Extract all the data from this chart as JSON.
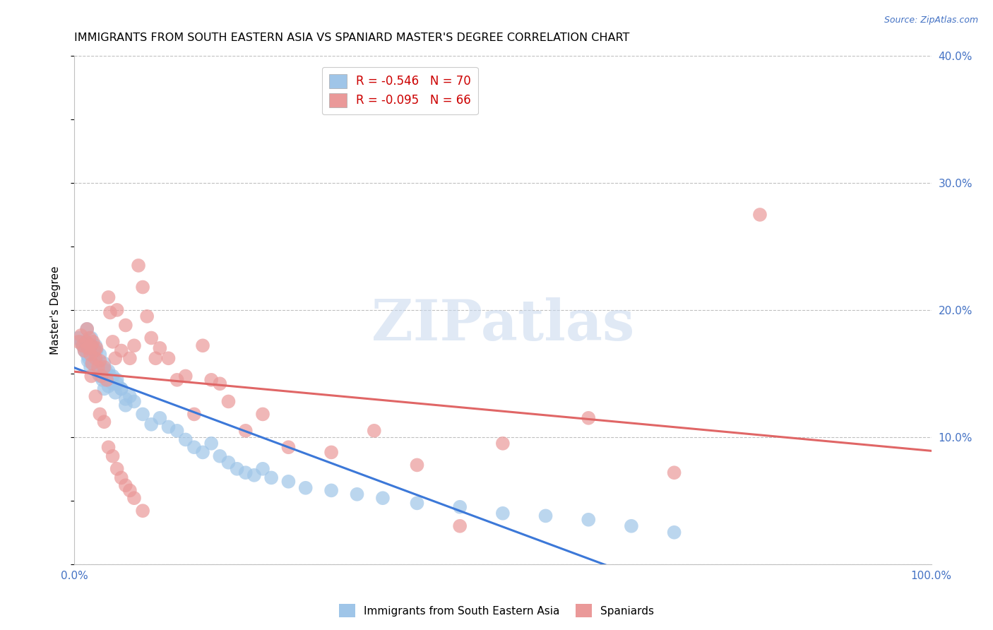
{
  "title": "IMMIGRANTS FROM SOUTH EASTERN ASIA VS SPANIARD MASTER'S DEGREE CORRELATION CHART",
  "source": "Source: ZipAtlas.com",
  "ylabel": "Master's Degree",
  "xlim": [
    0,
    1.0
  ],
  "ylim": [
    0,
    0.4
  ],
  "yticks": [
    0.0,
    0.1,
    0.2,
    0.3,
    0.4
  ],
  "yticklabels": [
    "",
    "10.0%",
    "20.0%",
    "30.0%",
    "40.0%"
  ],
  "legend_labels": [
    "Immigrants from South Eastern Asia",
    "Spaniards"
  ],
  "blue_color": "#9fc5e8",
  "pink_color": "#ea9999",
  "blue_line_color": "#3c78d8",
  "pink_line_color": "#e06666",
  "R_blue": -0.546,
  "N_blue": 70,
  "R_pink": -0.095,
  "N_pink": 66,
  "watermark": "ZIPatlas",
  "tick_color": "#4472c4",
  "grid_color": "#c0c0c0",
  "blue_scatter_x": [
    0.005,
    0.008,
    0.01,
    0.012,
    0.013,
    0.014,
    0.015,
    0.016,
    0.017,
    0.018,
    0.019,
    0.02,
    0.021,
    0.022,
    0.023,
    0.025,
    0.026,
    0.028,
    0.03,
    0.032,
    0.033,
    0.035,
    0.037,
    0.04,
    0.042,
    0.045,
    0.048,
    0.05,
    0.055,
    0.06,
    0.065,
    0.07,
    0.08,
    0.09,
    0.1,
    0.11,
    0.12,
    0.13,
    0.14,
    0.15,
    0.16,
    0.17,
    0.18,
    0.19,
    0.2,
    0.21,
    0.22,
    0.23,
    0.25,
    0.27,
    0.3,
    0.33,
    0.36,
    0.4,
    0.45,
    0.5,
    0.55,
    0.6,
    0.65,
    0.7,
    0.015,
    0.02,
    0.025,
    0.03,
    0.035,
    0.04,
    0.045,
    0.05,
    0.055,
    0.06
  ],
  "blue_scatter_y": [
    0.178,
    0.175,
    0.172,
    0.168,
    0.17,
    0.175,
    0.165,
    0.16,
    0.162,
    0.168,
    0.155,
    0.172,
    0.158,
    0.162,
    0.17,
    0.155,
    0.168,
    0.15,
    0.148,
    0.155,
    0.145,
    0.138,
    0.152,
    0.14,
    0.148,
    0.142,
    0.135,
    0.145,
    0.138,
    0.125,
    0.132,
    0.128,
    0.118,
    0.11,
    0.115,
    0.108,
    0.105,
    0.098,
    0.092,
    0.088,
    0.095,
    0.085,
    0.08,
    0.075,
    0.072,
    0.07,
    0.075,
    0.068,
    0.065,
    0.06,
    0.058,
    0.055,
    0.052,
    0.048,
    0.045,
    0.04,
    0.038,
    0.035,
    0.03,
    0.025,
    0.185,
    0.178,
    0.172,
    0.165,
    0.158,
    0.152,
    0.148,
    0.142,
    0.138,
    0.13
  ],
  "pink_scatter_x": [
    0.005,
    0.008,
    0.01,
    0.012,
    0.014,
    0.015,
    0.016,
    0.018,
    0.019,
    0.02,
    0.021,
    0.022,
    0.024,
    0.025,
    0.026,
    0.028,
    0.03,
    0.032,
    0.035,
    0.038,
    0.04,
    0.042,
    0.045,
    0.048,
    0.05,
    0.055,
    0.06,
    0.065,
    0.07,
    0.075,
    0.08,
    0.085,
    0.09,
    0.095,
    0.1,
    0.11,
    0.12,
    0.13,
    0.14,
    0.15,
    0.16,
    0.17,
    0.18,
    0.2,
    0.22,
    0.25,
    0.3,
    0.35,
    0.4,
    0.45,
    0.5,
    0.6,
    0.7,
    0.8,
    0.02,
    0.025,
    0.03,
    0.035,
    0.04,
    0.045,
    0.05,
    0.055,
    0.06,
    0.065,
    0.07,
    0.08
  ],
  "pink_scatter_y": [
    0.175,
    0.18,
    0.172,
    0.168,
    0.175,
    0.185,
    0.17,
    0.178,
    0.165,
    0.172,
    0.158,
    0.175,
    0.168,
    0.162,
    0.17,
    0.155,
    0.16,
    0.148,
    0.155,
    0.145,
    0.21,
    0.198,
    0.175,
    0.162,
    0.2,
    0.168,
    0.188,
    0.162,
    0.172,
    0.235,
    0.218,
    0.195,
    0.178,
    0.162,
    0.17,
    0.162,
    0.145,
    0.148,
    0.118,
    0.172,
    0.145,
    0.142,
    0.128,
    0.105,
    0.118,
    0.092,
    0.088,
    0.105,
    0.078,
    0.03,
    0.095,
    0.115,
    0.072,
    0.275,
    0.148,
    0.132,
    0.118,
    0.112,
    0.092,
    0.085,
    0.075,
    0.068,
    0.062,
    0.058,
    0.052,
    0.042
  ]
}
